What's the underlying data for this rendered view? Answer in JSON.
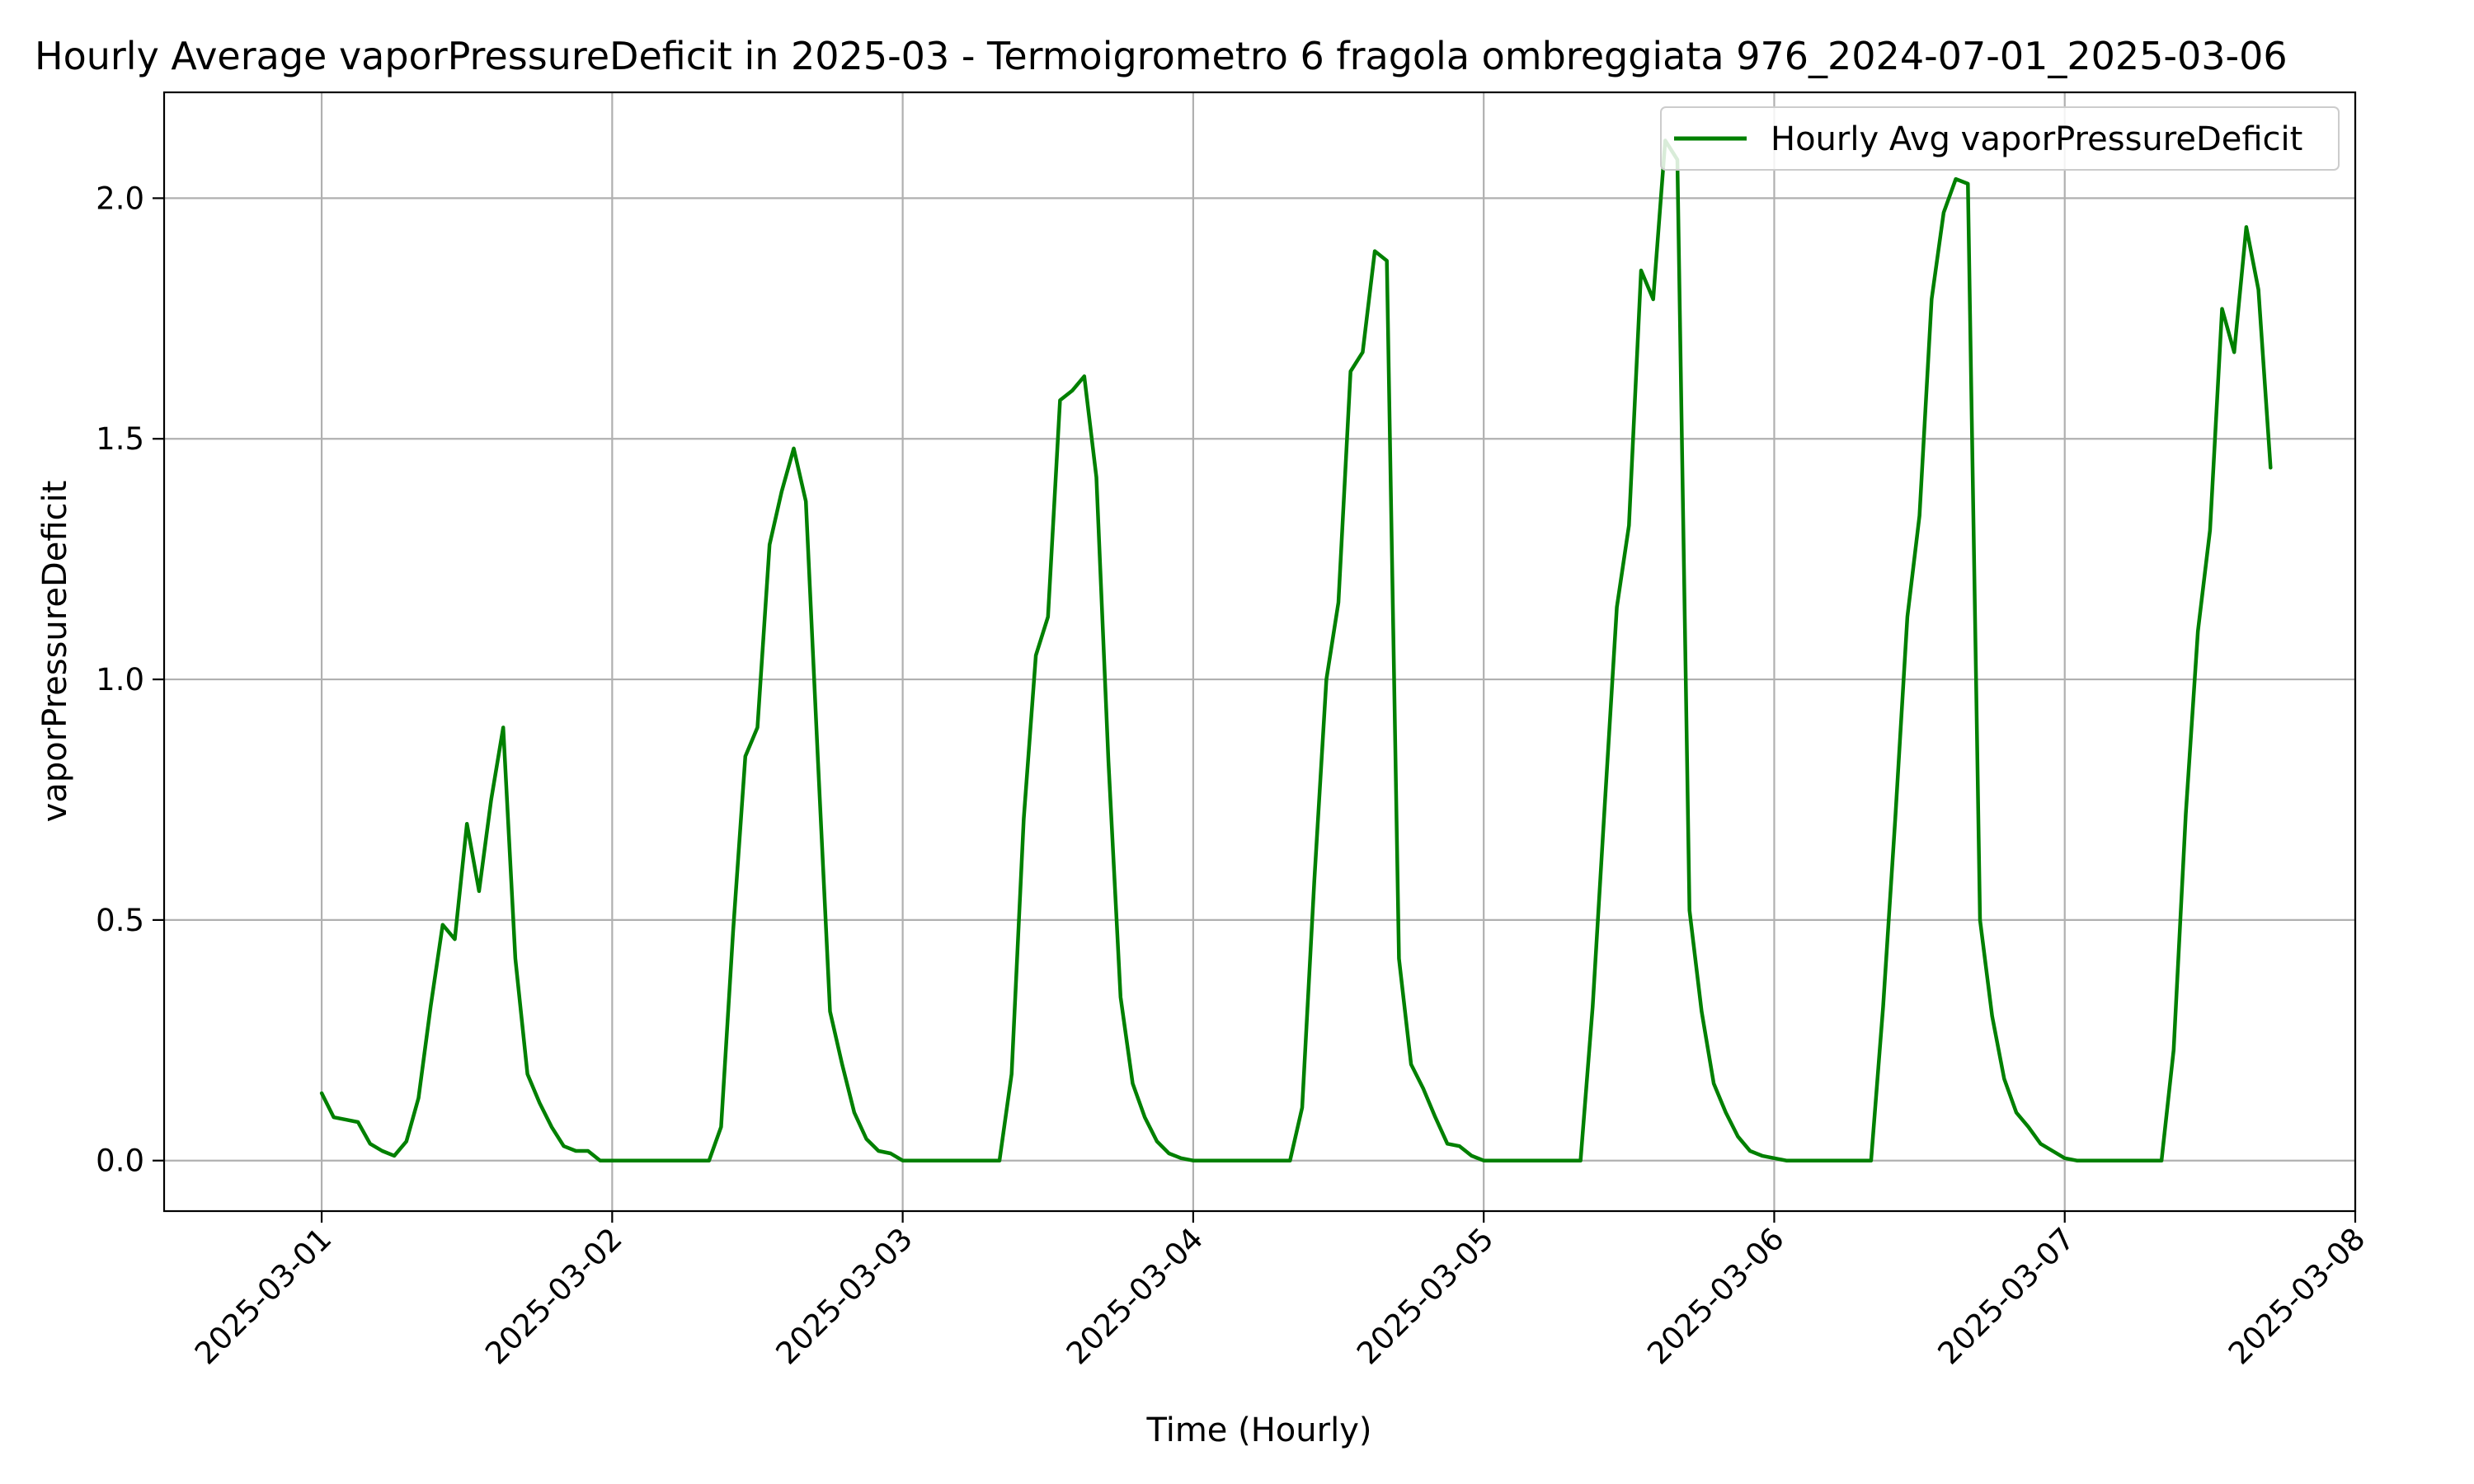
{
  "chart_data": {
    "type": "line",
    "title": "Hourly Average vaporPressureDeficit in 2025-03 - Termoigrometro 6 fragola ombreggiata 976_2024-07-01_2025-03-06",
    "xlabel": "Time (Hourly)",
    "ylabel": "vaporPressureDeficit",
    "xlim": [
      "2025-02-28T10:59",
      "2025-03-08T00:00"
    ],
    "ylim": [
      -0.105,
      2.22
    ],
    "grid": true,
    "legend_position": "top-right",
    "x_ticks": [
      "2025-03-01",
      "2025-03-02",
      "2025-03-03",
      "2025-03-04",
      "2025-03-05",
      "2025-03-06",
      "2025-03-07",
      "2025-03-08"
    ],
    "y_ticks": [
      "0.0",
      "0.5",
      "1.0",
      "1.5",
      "2.0"
    ],
    "series": [
      {
        "name": "Hourly Avg vaporPressureDeficit",
        "color": "#008000",
        "start": "2025-03-01T00:00",
        "interval": "1h",
        "values": [
          0.14,
          0.09,
          0.085,
          0.08,
          0.035,
          0.02,
          0.01,
          0.04,
          0.13,
          0.32,
          0.49,
          0.46,
          0.7,
          0.56,
          0.75,
          0.9,
          0.42,
          0.18,
          0.12,
          0.07,
          0.03,
          0.02,
          0.02,
          0.0,
          0.0,
          0.0,
          0.0,
          0.0,
          0.0,
          0.0,
          0.0,
          0.0,
          0.0,
          0.07,
          0.48,
          0.84,
          0.9,
          1.28,
          1.39,
          1.48,
          1.37,
          0.83,
          0.31,
          0.2,
          0.1,
          0.045,
          0.02,
          0.015,
          0.0,
          0.0,
          0.0,
          0.0,
          0.0,
          0.0,
          0.0,
          0.0,
          0.0,
          0.18,
          0.71,
          1.05,
          1.13,
          1.58,
          1.6,
          1.63,
          1.42,
          0.83,
          0.34,
          0.16,
          0.09,
          0.04,
          0.015,
          0.005,
          0.0,
          0.0,
          0.0,
          0.0,
          0.0,
          0.0,
          0.0,
          0.0,
          0.0,
          0.11,
          0.58,
          1.0,
          1.16,
          1.64,
          1.68,
          1.89,
          1.87,
          0.42,
          0.2,
          0.15,
          0.09,
          0.035,
          0.03,
          0.01,
          0.0,
          0.0,
          0.0,
          0.0,
          0.0,
          0.0,
          0.0,
          0.0,
          0.0,
          0.32,
          0.74,
          1.15,
          1.32,
          1.85,
          1.79,
          2.12,
          2.08,
          0.52,
          0.31,
          0.16,
          0.1,
          0.05,
          0.02,
          0.01,
          0.005,
          0.0,
          0.0,
          0.0,
          0.0,
          0.0,
          0.0,
          0.0,
          0.0,
          0.32,
          0.71,
          1.13,
          1.34,
          1.79,
          1.97,
          2.04,
          2.03,
          0.5,
          0.3,
          0.17,
          0.1,
          0.07,
          0.035,
          0.02,
          0.005,
          0.0,
          0.0,
          0.0,
          0.0,
          0.0,
          0.0,
          0.0,
          0.0,
          0.23,
          0.72,
          1.1,
          1.31,
          1.77,
          1.68,
          1.94,
          1.81,
          1.44
        ]
      }
    ]
  }
}
